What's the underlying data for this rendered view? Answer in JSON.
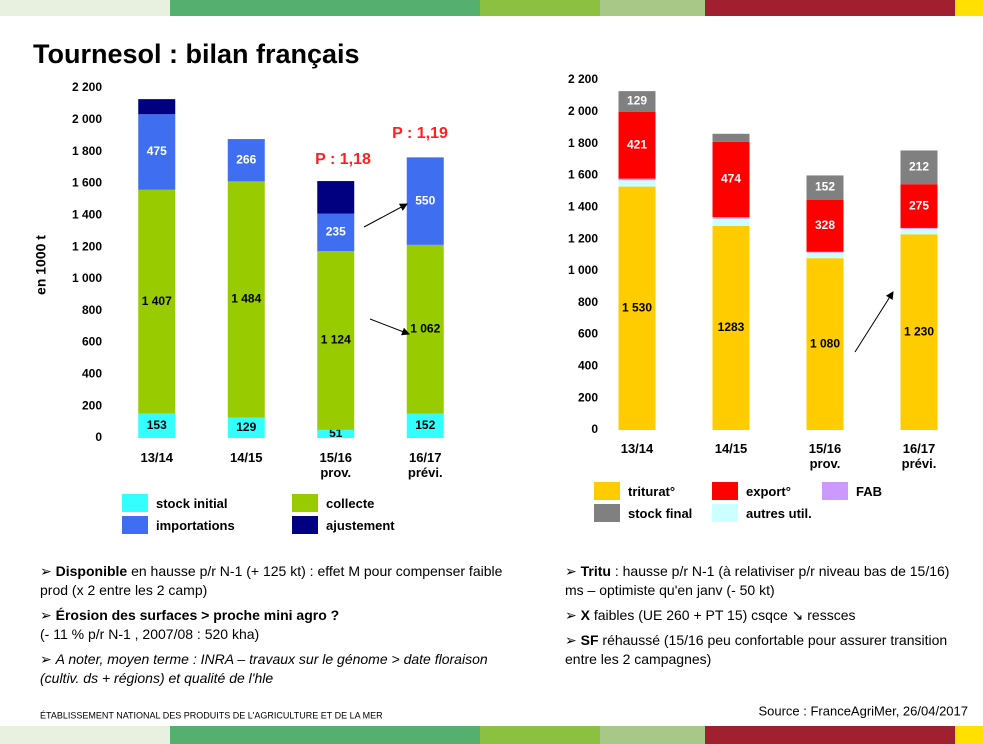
{
  "title": "Tournesol : bilan français",
  "chart_data": [
    {
      "type": "stacked_bar",
      "y_label": "en 1000 t",
      "categories": [
        "13/14",
        "14/15",
        "15/16\nprov.",
        "16/17\nprévi."
      ],
      "ylim": [
        0,
        2200
      ],
      "yticks": [
        0,
        200,
        400,
        600,
        800,
        {
          "value": 1000,
          "label": "1 000"
        },
        {
          "value": 1200,
          "label": "1 200"
        },
        {
          "value": 1400,
          "label": "1 400"
        },
        {
          "value": 1600,
          "label": "1 600"
        },
        {
          "value": 1800,
          "label": "1 800"
        },
        {
          "value": 2000,
          "label": "2 000"
        },
        {
          "value": 2200,
          "label": "2 200"
        }
      ],
      "grid": false,
      "series": [
        {
          "name": "stock initial",
          "color": "#33ffff",
          "values": [
            153,
            129,
            51,
            152
          ],
          "value_labels": [
            "153",
            "129",
            "51",
            "152"
          ]
        },
        {
          "name": "collecte",
          "color": "#99cc00",
          "values": [
            1407,
            1484,
            1124,
            1062
          ],
          "value_labels": [
            "1 407",
            "1 484",
            "1 124",
            "1 062"
          ]
        },
        {
          "name": "importations",
          "color": "#3f6ff0",
          "values": [
            475,
            266,
            235,
            550
          ],
          "value_labels": [
            "475",
            "266",
            "235",
            "550"
          ]
        },
        {
          "name": "ajustement",
          "color": "#000080",
          "values": [
            95,
            null,
            205,
            null
          ]
        }
      ],
      "annotations": [
        "P : 1,18",
        "P : 1,19"
      ]
    },
    {
      "type": "stacked_bar",
      "categories": [
        "13/14",
        "14/15",
        "15/16\nprov.",
        "16/17\nprévi."
      ],
      "ylim": [
        0,
        2200
      ],
      "yticks": [
        0,
        200,
        400,
        600,
        800,
        {
          "value": 1000,
          "label": "1 000"
        },
        {
          "value": 1200,
          "label": "1 200"
        },
        {
          "value": 1400,
          "label": "1 400"
        },
        {
          "value": 1600,
          "label": "1 600"
        },
        {
          "value": 1800,
          "label": "1 800"
        },
        {
          "value": 2000,
          "label": "2 000"
        },
        {
          "value": 2200,
          "label": "2 200"
        }
      ],
      "grid": false,
      "series": [
        {
          "name": "triturat°",
          "color": "#ffcc00",
          "values": [
            1530,
            1283,
            1080,
            1230
          ],
          "value_labels": [
            "1 530",
            "1283",
            "1 080",
            "1 230"
          ]
        },
        {
          "name": "autres util.",
          "color": "#ccffff",
          "values": [
            40,
            45,
            35,
            35
          ]
        },
        {
          "name": "FAB",
          "color": "#cc99ff",
          "values": [
            10,
            10,
            5,
            5
          ]
        },
        {
          "name": "export°",
          "color": "#ff0000",
          "values": [
            421,
            474,
            328,
            275
          ],
          "value_labels": [
            "421",
            "474",
            "328",
            "275"
          ]
        },
        {
          "name": "stock final",
          "color": "#808080",
          "values": [
            129,
            50,
            152,
            212
          ],
          "value_labels": [
            "129",
            null,
            "152",
            "212"
          ]
        }
      ]
    }
  ],
  "notes_left": [
    {
      "bold": "Disponible",
      "text": " en hausse p/r N-1 (+ 125 kt) : effet M pour compenser faible prod (x 2 entre les 2 camp)"
    },
    {
      "bold": "Érosion des surfaces > proche mini agro ?",
      "text": "(- 11 % p/r N-1 , 2007/08 : 520 kha)"
    },
    {
      "italic": "A noter, moyen terme : INRA – travaux sur le génome > date floraison (cultiv. ds + régions) et qualité de l'hle"
    }
  ],
  "notes_right": [
    {
      "bold": "Tritu",
      "text": " : hausse p/r N-1 (à relativiser p/r niveau bas de 15/16) ms – optimiste qu'en janv (- 50 kt)"
    },
    {
      "bold": "X",
      "text": " faibles (UE 260 + PT 15) csqce ↘ ressces"
    },
    {
      "bold": "SF",
      "text": " réhaussé (15/16 peu confortable pour assurer transition entre les 2 campagnes)"
    }
  ],
  "footer": {
    "organisation": "ÉTABLISSEMENT NATIONAL DES PRODUITS DE L'AGRICULTURE ET DE LA MER",
    "source": "Source : FranceAgriMer, 26/04/2017"
  }
}
